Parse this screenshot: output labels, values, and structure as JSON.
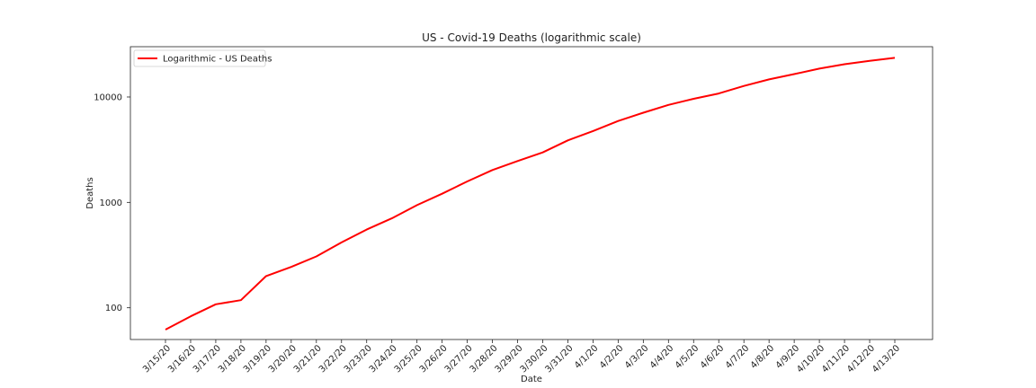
{
  "chart_data": {
    "type": "line",
    "title": "US - Covid-19 Deaths (logarithmic scale)",
    "xlabel": "Date",
    "ylabel": "Deaths",
    "yscale": "log",
    "ylim": [
      50,
      30000
    ],
    "yticks": [
      100,
      1000,
      10000
    ],
    "ytick_labels": [
      "100",
      "1000",
      "10000"
    ],
    "grid": false,
    "legend_position": "top-left",
    "categories": [
      "3/15/20",
      "3/16/20",
      "3/17/20",
      "3/18/20",
      "3/19/20",
      "3/20/20",
      "3/21/20",
      "3/22/20",
      "3/23/20",
      "3/24/20",
      "3/25/20",
      "3/26/20",
      "3/27/20",
      "3/28/20",
      "3/29/20",
      "3/30/20",
      "3/31/20",
      "4/1/20",
      "4/2/20",
      "4/3/20",
      "4/4/20",
      "4/5/20",
      "4/6/20",
      "4/7/20",
      "4/8/20",
      "4/9/20",
      "4/10/20",
      "4/11/20",
      "4/12/20",
      "4/13/20"
    ],
    "series": [
      {
        "name": "Logarithmic - US Deaths",
        "color": "#ff0000",
        "values": [
          62,
          83,
          108,
          118,
          200,
          244,
          307,
          417,
          552,
          706,
          942,
          1209,
          1581,
          2026,
          2467,
          2978,
          3873,
          4757,
          5926,
          7087,
          8407,
          9619,
          10783,
          12722,
          14695,
          16478,
          18586,
          20463,
          22020,
          23529
        ]
      }
    ]
  }
}
